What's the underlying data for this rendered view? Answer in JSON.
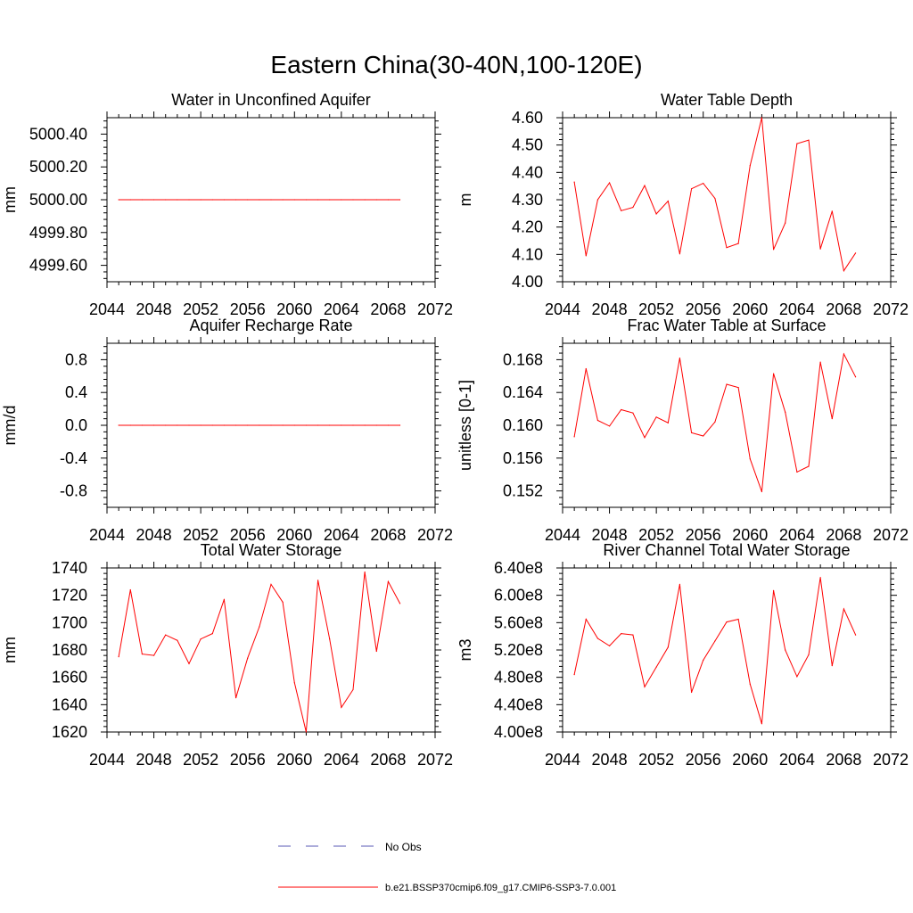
{
  "page": {
    "title": "Eastern China(30-40N,100-120E)"
  },
  "legend": {
    "obs_label": "No Obs",
    "obs_color": "#5a5ab4",
    "model_label": "b.e21.BSSP370cmip6.f09_g17.CMIP6-SSP3-7.0.001",
    "model_color": "#ff0000"
  },
  "chart_data": [
    {
      "type": "line",
      "title": "Water in Unconfined Aquifer",
      "ylabel": "mm",
      "xlim": [
        2044,
        2072
      ],
      "ylim": [
        4999.5,
        5000.5
      ],
      "xticks": [
        2044,
        2048,
        2052,
        2056,
        2060,
        2064,
        2068,
        2072
      ],
      "yticks": [
        4999.6,
        4999.8,
        5000.0,
        5000.2,
        5000.4
      ],
      "ytick_labels": [
        "4999.60",
        "4999.80",
        "5000.00",
        "5000.20",
        "5000.40"
      ],
      "x": [
        2045,
        2046,
        2047,
        2048,
        2049,
        2050,
        2051,
        2052,
        2053,
        2054,
        2055,
        2056,
        2057,
        2058,
        2059,
        2060,
        2061,
        2062,
        2063,
        2064,
        2065,
        2066,
        2067,
        2068,
        2069
      ],
      "series": [
        {
          "values": [
            5000,
            5000,
            5000,
            5000,
            5000,
            5000,
            5000,
            5000,
            5000,
            5000,
            5000,
            5000,
            5000,
            5000,
            5000,
            5000,
            5000,
            5000,
            5000,
            5000,
            5000,
            5000,
            5000,
            5000,
            5000
          ]
        }
      ]
    },
    {
      "type": "line",
      "title": "Water Table Depth",
      "ylabel": "m",
      "xlim": [
        2044,
        2072
      ],
      "ylim": [
        4.0,
        4.6
      ],
      "xticks": [
        2044,
        2048,
        2052,
        2056,
        2060,
        2064,
        2068,
        2072
      ],
      "yticks": [
        4.0,
        4.1,
        4.2,
        4.3,
        4.4,
        4.5,
        4.6
      ],
      "ytick_labels": [
        "4.00",
        "4.10",
        "4.20",
        "4.30",
        "4.40",
        "4.50",
        "4.60"
      ],
      "x": [
        2045,
        2046,
        2047,
        2048,
        2049,
        2050,
        2051,
        2052,
        2053,
        2054,
        2055,
        2056,
        2057,
        2058,
        2059,
        2060,
        2061,
        2062,
        2063,
        2064,
        2065,
        2066,
        2067,
        2068,
        2069
      ],
      "series": [
        {
          "values": [
            4.365,
            4.095,
            4.3,
            4.362,
            4.26,
            4.272,
            4.352,
            4.248,
            4.295,
            4.102,
            4.34,
            4.36,
            4.305,
            4.125,
            4.14,
            4.425,
            4.6,
            4.118,
            4.215,
            4.505,
            4.518,
            4.12,
            4.258,
            4.04,
            4.105
          ]
        }
      ]
    },
    {
      "type": "line",
      "title": "Aquifer Recharge Rate",
      "ylabel": "mm/d",
      "xlim": [
        2044,
        2072
      ],
      "ylim": [
        -1.0,
        1.0
      ],
      "xticks": [
        2044,
        2048,
        2052,
        2056,
        2060,
        2064,
        2068,
        2072
      ],
      "yticks": [
        -0.8,
        -0.4,
        0.0,
        0.4,
        0.8
      ],
      "ytick_labels": [
        "-0.8",
        "-0.4",
        "0.0",
        "0.4",
        "0.8"
      ],
      "x": [
        2045,
        2046,
        2047,
        2048,
        2049,
        2050,
        2051,
        2052,
        2053,
        2054,
        2055,
        2056,
        2057,
        2058,
        2059,
        2060,
        2061,
        2062,
        2063,
        2064,
        2065,
        2066,
        2067,
        2068,
        2069
      ],
      "series": [
        {
          "values": [
            0,
            0,
            0,
            0,
            0,
            0,
            0,
            0,
            0,
            0,
            0,
            0,
            0,
            0,
            0,
            0,
            0,
            0,
            0,
            0,
            0,
            0,
            0,
            0,
            0
          ]
        }
      ]
    },
    {
      "type": "line",
      "title": "Frac Water Table at Surface",
      "ylabel": "unitless [0-1]",
      "xlim": [
        2044,
        2072
      ],
      "ylim": [
        0.15,
        0.17
      ],
      "xticks": [
        2044,
        2048,
        2052,
        2056,
        2060,
        2064,
        2068,
        2072
      ],
      "yticks": [
        0.152,
        0.156,
        0.16,
        0.164,
        0.168
      ],
      "ytick_labels": [
        "0.152",
        "0.156",
        "0.160",
        "0.164",
        "0.168"
      ],
      "x": [
        2045,
        2046,
        2047,
        2048,
        2049,
        2050,
        2051,
        2052,
        2053,
        2054,
        2055,
        2056,
        2057,
        2058,
        2059,
        2060,
        2061,
        2062,
        2063,
        2064,
        2065,
        2066,
        2067,
        2068,
        2069
      ],
      "series": [
        {
          "values": [
            0.1586,
            0.1669,
            0.1606,
            0.1599,
            0.1619,
            0.1615,
            0.1585,
            0.161,
            0.1603,
            0.1682,
            0.1591,
            0.1587,
            0.1604,
            0.165,
            0.1646,
            0.1559,
            0.1519,
            0.1663,
            0.1616,
            0.1543,
            0.155,
            0.1677,
            0.1608,
            0.1687,
            0.1659
          ]
        }
      ]
    },
    {
      "type": "line",
      "title": "Total Water Storage",
      "ylabel": "mm",
      "xlim": [
        2044,
        2072
      ],
      "ylim": [
        1620,
        1740
      ],
      "xticks": [
        2044,
        2048,
        2052,
        2056,
        2060,
        2064,
        2068,
        2072
      ],
      "yticks": [
        1620,
        1640,
        1660,
        1680,
        1700,
        1720,
        1740
      ],
      "ytick_labels": [
        "1620",
        "1640",
        "1660",
        "1680",
        "1700",
        "1720",
        "1740"
      ],
      "x": [
        2045,
        2046,
        2047,
        2048,
        2049,
        2050,
        2051,
        2052,
        2053,
        2054,
        2055,
        2056,
        2057,
        2058,
        2059,
        2060,
        2061,
        2062,
        2063,
        2064,
        2065,
        2066,
        2067,
        2068,
        2069
      ],
      "series": [
        {
          "values": [
            1675,
            1724,
            1677,
            1676,
            1691,
            1687,
            1670,
            1688,
            1692,
            1717,
            1645,
            1674,
            1697,
            1728,
            1715,
            1656,
            1620,
            1731,
            1688,
            1638,
            1651,
            1737,
            1679,
            1730,
            1714
          ]
        }
      ]
    },
    {
      "type": "line",
      "title": "River Channel Total Water Storage",
      "ylabel": "m3",
      "xlim": [
        2044,
        2072
      ],
      "ylim": [
        400000000,
        640000000
      ],
      "xticks": [
        2044,
        2048,
        2052,
        2056,
        2060,
        2064,
        2068,
        2072
      ],
      "yticks": [
        400000000,
        440000000,
        480000000,
        520000000,
        560000000,
        600000000,
        640000000
      ],
      "ytick_labels": [
        "4.00e8",
        "4.40e8",
        "4.80e8",
        "5.20e8",
        "5.60e8",
        "6.00e8",
        "6.40e8"
      ],
      "x": [
        2045,
        2046,
        2047,
        2048,
        2049,
        2050,
        2051,
        2052,
        2053,
        2054,
        2055,
        2056,
        2057,
        2058,
        2059,
        2060,
        2061,
        2062,
        2063,
        2064,
        2065,
        2066,
        2067,
        2068,
        2069
      ],
      "series": [
        {
          "values": [
            484000000,
            565000000,
            537000000,
            526000000,
            544000000,
            542000000,
            466000000,
            495000000,
            524000000,
            616000000,
            458000000,
            505000000,
            533000000,
            561000000,
            565000000,
            470000000,
            412000000,
            607000000,
            520000000,
            481000000,
            513000000,
            626000000,
            497000000,
            580000000,
            542000000
          ]
        }
      ]
    }
  ]
}
